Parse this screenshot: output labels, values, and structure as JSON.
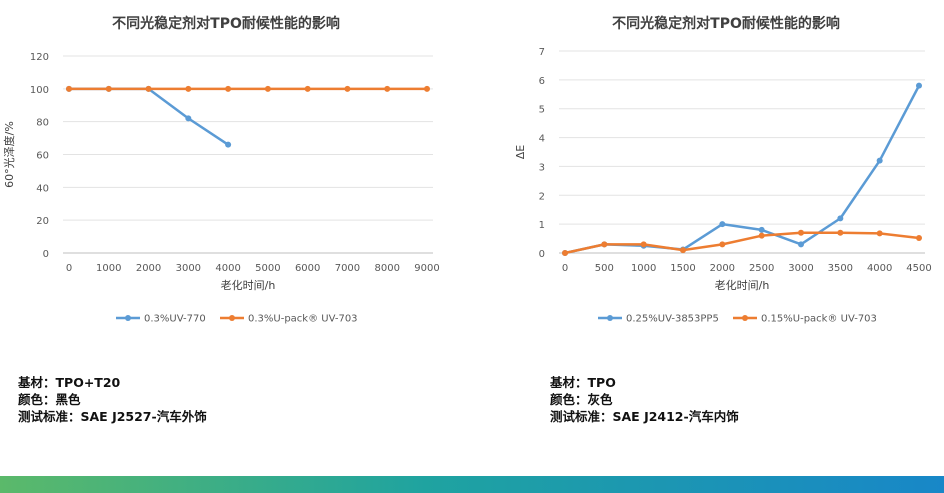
{
  "chart_data": [
    {
      "type": "line",
      "title": "不同光稳定剂对TPO耐候性能的影响",
      "xlabel": "老化时间/h",
      "ylabel": "60°光泽度/%",
      "x": [
        0,
        1000,
        2000,
        3000,
        4000,
        5000,
        6000,
        7000,
        8000,
        9000
      ],
      "ylim": [
        0,
        120
      ],
      "yticks": [
        0,
        20,
        40,
        60,
        80,
        100,
        120
      ],
      "grid": true,
      "legend_position": "bottom",
      "series": [
        {
          "name": "0.3%UV-770",
          "color": "#5b9bd5",
          "values": [
            100,
            100,
            100,
            82,
            66,
            null,
            null,
            null,
            null,
            null
          ]
        },
        {
          "name": "0.3%U-pack® UV-703",
          "color": "#ed7d31",
          "values": [
            100,
            100,
            100,
            100,
            100,
            100,
            100,
            100,
            100,
            100
          ]
        }
      ]
    },
    {
      "type": "line",
      "title": "不同光稳定剂对TPO耐候性能的影响",
      "xlabel": "老化时间/h",
      "ylabel": "ΔE",
      "x": [
        0,
        500,
        1000,
        1500,
        2000,
        2500,
        3000,
        3500,
        4000,
        4500
      ],
      "ylim": [
        0,
        7
      ],
      "yticks": [
        0,
        1,
        2,
        3,
        4,
        5,
        6,
        7
      ],
      "grid": true,
      "legend_position": "bottom",
      "series": [
        {
          "name": "0.25%UV-3853PP5",
          "color": "#5b9bd5",
          "values": [
            0,
            0.3,
            0.25,
            0.12,
            1.0,
            0.8,
            0.3,
            1.2,
            3.2,
            5.8
          ]
        },
        {
          "name": "0.15%U-pack® UV-703",
          "color": "#ed7d31",
          "values": [
            0,
            0.3,
            0.3,
            0.1,
            0.3,
            0.6,
            0.7,
            0.7,
            0.68,
            0.52
          ]
        }
      ]
    }
  ],
  "info_left": [
    "基材：TPO+T20",
    "颜色：黑色",
    "测试标准：SAE J2527-汽车外饰"
  ],
  "info_right": [
    "基材：TPO",
    "颜色：灰色",
    "测试标准：SAE J2412-汽车内饰"
  ]
}
